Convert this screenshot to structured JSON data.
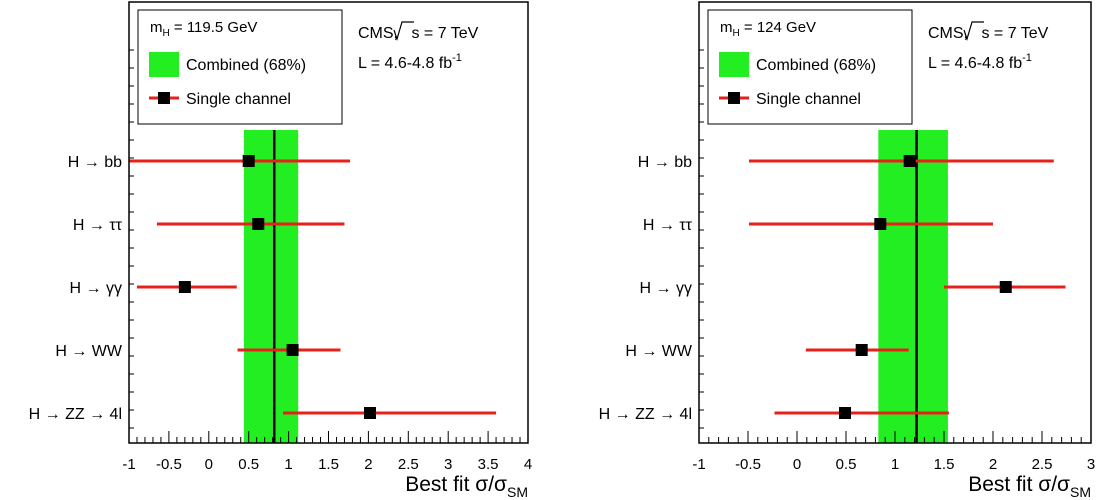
{
  "chart_data": [
    {
      "type": "scatter",
      "mass_label": "m",
      "mass_sub": "H",
      "mass_value": " = 119.5 GeV",
      "exp_line1_pre": "CMS, ",
      "exp_sqrt": "s",
      "exp_line1_post": " = 7 TeV",
      "exp_line2": "L = 4.6-4.8 fb",
      "exp_line2_sup": "-1",
      "legend": {
        "band": "Combined  (68%)",
        "marker": "Single channel"
      },
      "xlabel_main": "Best fit σ/σ",
      "xlabel_sub": "SM",
      "xlim": [
        -1,
        4
      ],
      "ticks": [
        "-1",
        "-0.5",
        "0",
        "0.5",
        "1",
        "1.5",
        "2",
        "2.5",
        "3",
        "3.5",
        "4"
      ],
      "combined": {
        "value": 0.82,
        "band": [
          0.44,
          1.12
        ]
      },
      "channels": [
        {
          "label": "H → bb",
          "value": 0.5,
          "low": -1.0,
          "high": 1.77
        },
        {
          "label": "H → ττ",
          "value": 0.62,
          "low": -0.65,
          "high": 1.7
        },
        {
          "label": "H → γγ",
          "value": -0.3,
          "low": -0.9,
          "high": 0.35
        },
        {
          "label": "H → WW",
          "value": 1.05,
          "low": 0.36,
          "high": 1.65
        },
        {
          "label": "H → ZZ → 4l",
          "value": 2.02,
          "low": 0.93,
          "high": 3.6
        }
      ]
    },
    {
      "type": "scatter",
      "mass_label": "m",
      "mass_sub": "H",
      "mass_value": " = 124 GeV",
      "exp_line1_pre": "CMS, ",
      "exp_sqrt": "s",
      "exp_line1_post": " = 7 TeV",
      "exp_line2": "L = 4.6-4.8 fb",
      "exp_line2_sup": "-1",
      "legend": {
        "band": "Combined  (68%)",
        "marker": "Single channel"
      },
      "xlabel_main": "Best fit σ/σ",
      "xlabel_sub": "SM",
      "xlim": [
        -1,
        3
      ],
      "ticks": [
        "-1",
        "-0.5",
        "0",
        "0.5",
        "1",
        "1.5",
        "2",
        "2.5",
        "3"
      ],
      "combined": {
        "value": 1.22,
        "band": [
          0.83,
          1.54
        ]
      },
      "channels": [
        {
          "label": "H → bb",
          "value": 1.15,
          "low": -0.49,
          "high": 2.62
        },
        {
          "label": "H → ττ",
          "value": 0.85,
          "low": -0.49,
          "high": 2.0
        },
        {
          "label": "H → γγ",
          "value": 2.13,
          "low": 1.5,
          "high": 2.74
        },
        {
          "label": "H → WW",
          "value": 0.66,
          "low": 0.09,
          "high": 1.14
        },
        {
          "label": "H → ZZ → 4l",
          "value": 0.49,
          "low": -0.23,
          "high": 1.55
        }
      ]
    }
  ],
  "colors": {
    "band": "#22ee22",
    "error_bar": "#e8201a",
    "marker": "#000000",
    "frame": "#000000"
  }
}
